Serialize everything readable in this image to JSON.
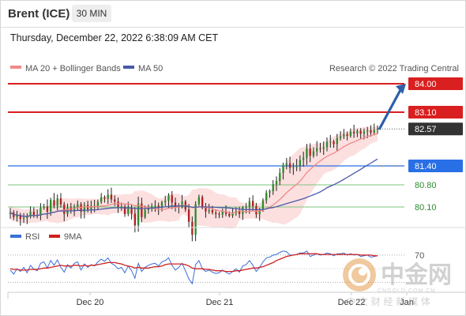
{
  "header": {
    "symbol": "Brent (ICE)",
    "timeframe": "30 MIN"
  },
  "datetime": "Thursday, December 22, 2022 6:38:09 AM CET",
  "legend": {
    "ma20": "MA 20 + Bollinger Bands",
    "ma50": "MA 50",
    "credit": "Research © 2022 Trading Central"
  },
  "colors": {
    "resistance": "#d91f1f",
    "pivot": "#2970e6",
    "support": "#7cc47c",
    "ma20": "#f08a8a",
    "ma50": "#4a5aa8",
    "band": "#fbd9d9",
    "candle_up": "#2e8b2e",
    "candle_down": "#b02020",
    "rsi": "#3a6fd8",
    "rsi_ma": "#d02020",
    "arrow": "#2e5fa8"
  },
  "chart_data": [
    {
      "type": "candlestick",
      "ylim": [
        79.55,
        84.25
      ],
      "x_labels": [
        "Dec 20",
        "Dec 21",
        "Dec 22",
        "Jan"
      ],
      "levels": [
        {
          "value": 84.0,
          "label": "84.00",
          "kind": "resistance"
        },
        {
          "value": 83.1,
          "label": "83.10",
          "kind": "resistance"
        },
        {
          "value": 82.57,
          "label": "82.57",
          "kind": "last"
        },
        {
          "value": 81.4,
          "label": "81.40",
          "kind": "pivot"
        },
        {
          "value": 80.8,
          "label": "80.80",
          "kind": "support"
        },
        {
          "value": 80.1,
          "label": "80.10",
          "kind": "support"
        }
      ],
      "series_close": [
        79.93,
        79.78,
        79.85,
        79.72,
        79.75,
        79.8,
        79.95,
        79.85,
        79.82,
        80.07,
        80.12,
        79.95,
        80.32,
        80.14,
        80.37,
        80.18,
        79.88,
        80.08,
        80.0,
        80.11,
        80.19,
        79.95,
        80.16,
        80.02,
        80.14,
        80.1,
        80.26,
        80.41,
        80.36,
        80.49,
        80.34,
        80.27,
        80.11,
        80.11,
        79.88,
        80.08,
        79.89,
        79.52,
        80.21,
        79.78,
        80.0,
        80.07,
        80.13,
        80.14,
        80.07,
        80.25,
        80.3,
        80.47,
        80.24,
        80.09,
        80.15,
        80.27,
        80.02,
        79.63,
        79.22,
        80.19,
        80.41,
        80.08,
        79.96,
        80.0,
        79.92,
        79.88,
        79.86,
        79.96,
        79.88,
        79.82,
        79.89,
        79.97,
        79.88,
        80.08,
        80.1,
        80.29,
        80.13,
        79.87,
        80.01,
        80.31,
        80.55,
        80.6,
        80.82,
        80.92,
        81.18,
        81.43,
        81.48,
        81.34,
        81.36,
        81.41,
        81.59,
        81.66,
        81.95,
        81.72,
        81.86,
        81.96,
        81.94,
        81.99,
        82.16,
        82.17,
        82.09,
        82.28,
        82.33,
        82.4,
        82.35,
        82.48,
        82.43,
        82.51,
        82.42,
        82.49,
        82.53,
        82.45,
        82.54,
        82.57
      ],
      "ma20_end": 82.1,
      "ma50_end": 81.4,
      "projection": {
        "from": 82.55,
        "to": 84.0
      }
    },
    {
      "type": "line",
      "legend": [
        "RSI",
        "9MA"
      ],
      "levels": [
        70
      ],
      "rsi": [
        48,
        42,
        50,
        46,
        52,
        44,
        55,
        49,
        47,
        58,
        60,
        51,
        62,
        55,
        63,
        52,
        45,
        56,
        51,
        58,
        60,
        48,
        57,
        52,
        56,
        54,
        60,
        64,
        61,
        66,
        58,
        55,
        50,
        52,
        44,
        54,
        47,
        36,
        58,
        46,
        52,
        55,
        57,
        58,
        54,
        60,
        62,
        66,
        55,
        48,
        52,
        58,
        47,
        35,
        28,
        56,
        62,
        50,
        46,
        48,
        45,
        43,
        44,
        48,
        45,
        42,
        46,
        50,
        45,
        54,
        56,
        62,
        55,
        46,
        52,
        60,
        66,
        67,
        70,
        71,
        74,
        76,
        75,
        70,
        70,
        71,
        73,
        73,
        76,
        68,
        70,
        72,
        70,
        71,
        73,
        72,
        69,
        72,
        72,
        73,
        70,
        72,
        70,
        71,
        68,
        69,
        70,
        67,
        68,
        69
      ],
      "rsi_ma": [
        50,
        49,
        49,
        48,
        48,
        48,
        49,
        49,
        49,
        50,
        51,
        51,
        52,
        53,
        54,
        55,
        54,
        54,
        54,
        55,
        55,
        54,
        55,
        54,
        55,
        55,
        56,
        57,
        58,
        59,
        59,
        59,
        58,
        57,
        55,
        54,
        53,
        51,
        52,
        51,
        51,
        51,
        52,
        53,
        53,
        54,
        56,
        57,
        57,
        57,
        57,
        57,
        56,
        54,
        51,
        50,
        50,
        50,
        49,
        49,
        48,
        47,
        47,
        47,
        46,
        46,
        46,
        47,
        47,
        48,
        49,
        50,
        51,
        51,
        52,
        53,
        55,
        57,
        59,
        62,
        64,
        66,
        68,
        69,
        70,
        71,
        72,
        72,
        72,
        72,
        72,
        72,
        71,
        71,
        71,
        71,
        71,
        71,
        71,
        71,
        71,
        71,
        71,
        71,
        70,
        70,
        70,
        70,
        69,
        69
      ]
    }
  ],
  "watermark": {
    "logo_text": "中金网",
    "url": "CNGOLD.COM.CN",
    "tagline": "中 文 财 经 新 媒 体"
  }
}
